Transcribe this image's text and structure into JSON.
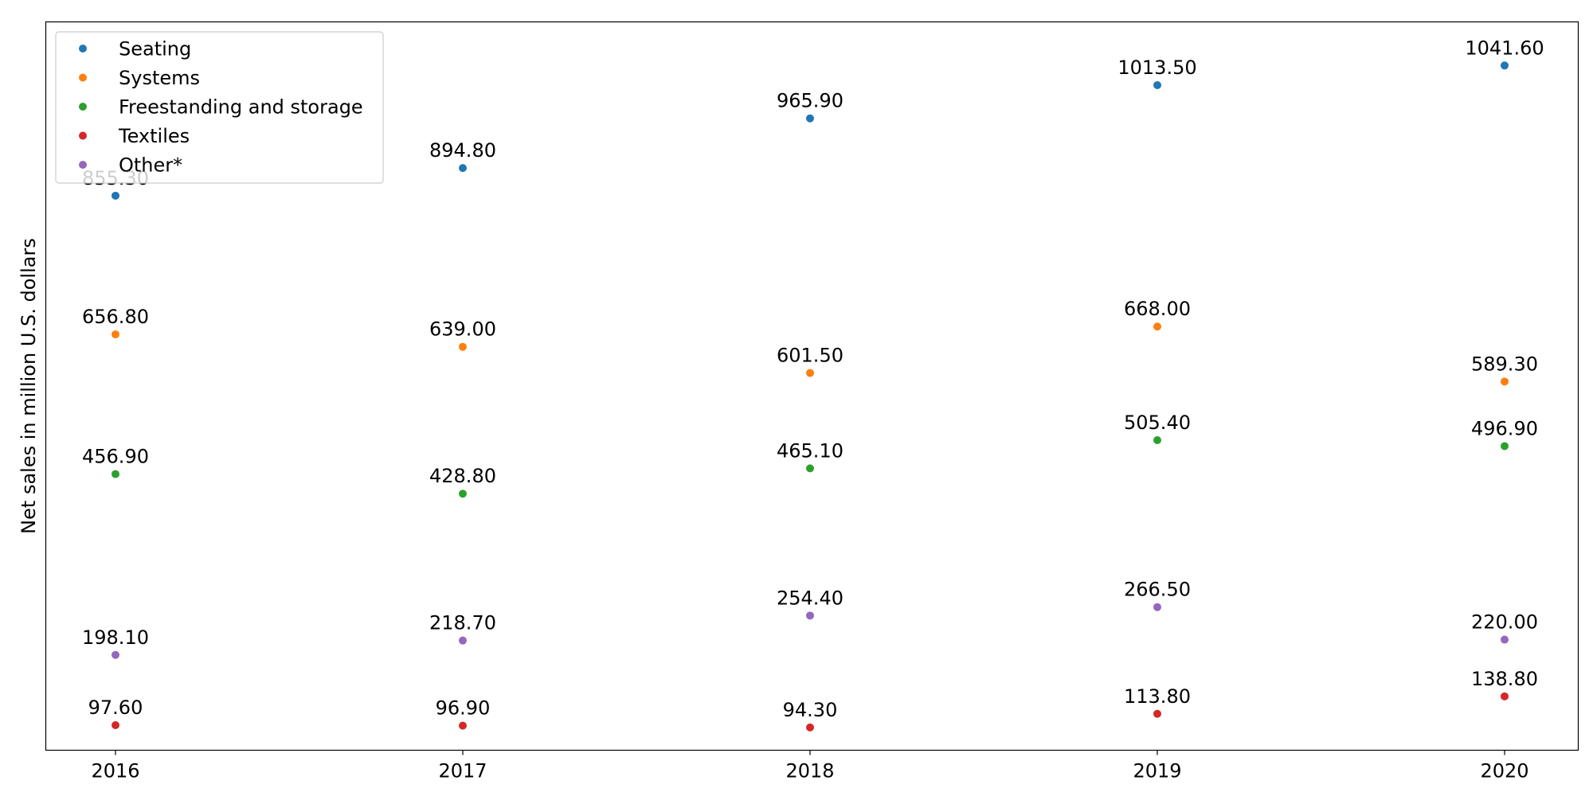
{
  "chart_data": {
    "type": "scatter",
    "title": "",
    "xlabel": "",
    "ylabel": "Net sales in million U.S. dollars",
    "x": [
      "2016",
      "2017",
      "2018",
      "2019",
      "2020"
    ],
    "series": [
      {
        "name": "Seating",
        "color": "#1f77b4",
        "values": [
          855.3,
          894.8,
          965.9,
          1013.5,
          1041.6
        ],
        "labels": [
          "855.30",
          "894.80",
          "965.90",
          "1013.50",
          "1041.60"
        ]
      },
      {
        "name": "Systems",
        "color": "#ff7f0e",
        "values": [
          656.8,
          639.0,
          601.5,
          668.0,
          589.3
        ],
        "labels": [
          "656.80",
          "639.00",
          "601.50",
          "668.00",
          "589.30"
        ]
      },
      {
        "name": "Freestanding and storage",
        "color": "#2ca02c",
        "values": [
          456.9,
          428.8,
          465.1,
          505.4,
          496.9
        ],
        "labels": [
          "456.90",
          "428.80",
          "465.10",
          "505.40",
          "496.90"
        ]
      },
      {
        "name": "Textiles",
        "color": "#d62728",
        "values": [
          97.6,
          96.9,
          94.3,
          113.8,
          138.8
        ],
        "labels": [
          "97.60",
          "96.90",
          "94.30",
          "113.80",
          "138.80"
        ]
      },
      {
        "name": "Other*",
        "color": "#9467bd",
        "values": [
          198.1,
          218.7,
          254.4,
          266.5,
          null
        ],
        "labels": [
          "198.10",
          "218.70",
          "254.40",
          "266.50",
          ""
        ]
      }
    ],
    "extra_points": [
      {
        "series": "Other*",
        "x": "2020",
        "value": 220.0,
        "label": "220.00",
        "color": "#9467bd"
      }
    ],
    "ylim": [
      61.7,
      1104.0
    ],
    "y_ticks_shown": false,
    "grid": false,
    "legend": "upper-left"
  }
}
